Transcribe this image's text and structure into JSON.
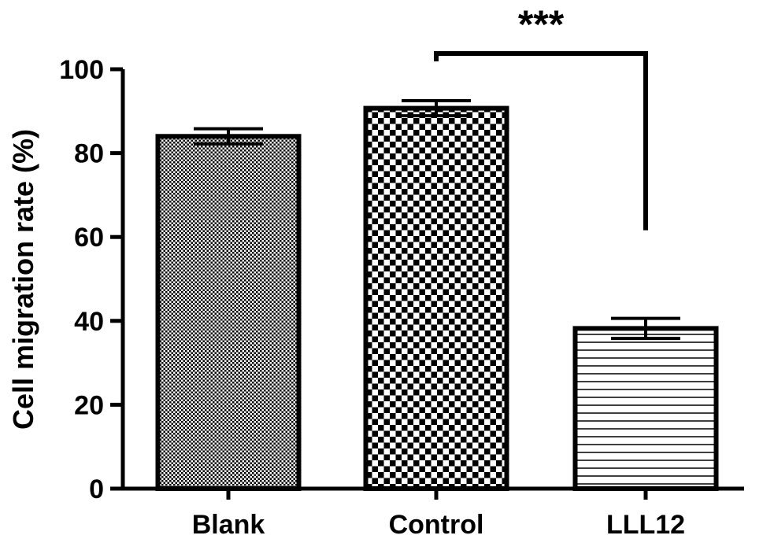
{
  "chart_data": {
    "type": "bar",
    "title": "",
    "xlabel": "",
    "ylabel": "Cell migration rate (%)",
    "ylim": [
      0,
      100
    ],
    "yticks": [
      0,
      20,
      40,
      60,
      80,
      100
    ],
    "ytick_labels": [
      "0",
      "20",
      "40",
      "60",
      "80",
      "100"
    ],
    "categories": [
      "Blank",
      "Control",
      "LLL12"
    ],
    "values": [
      84,
      90.7,
      38.2
    ],
    "errors": [
      1.8,
      1.8,
      2.4
    ],
    "patterns": [
      "fine-dots",
      "checker",
      "horizontal-lines"
    ],
    "annotations": [
      {
        "text": "***",
        "from": "Control",
        "to": "LLL12"
      }
    ],
    "grid": false,
    "legend": "none",
    "colors": {
      "bar_stroke": "#000000",
      "fill_pattern": "#000000",
      "background": "#ffffff"
    }
  }
}
